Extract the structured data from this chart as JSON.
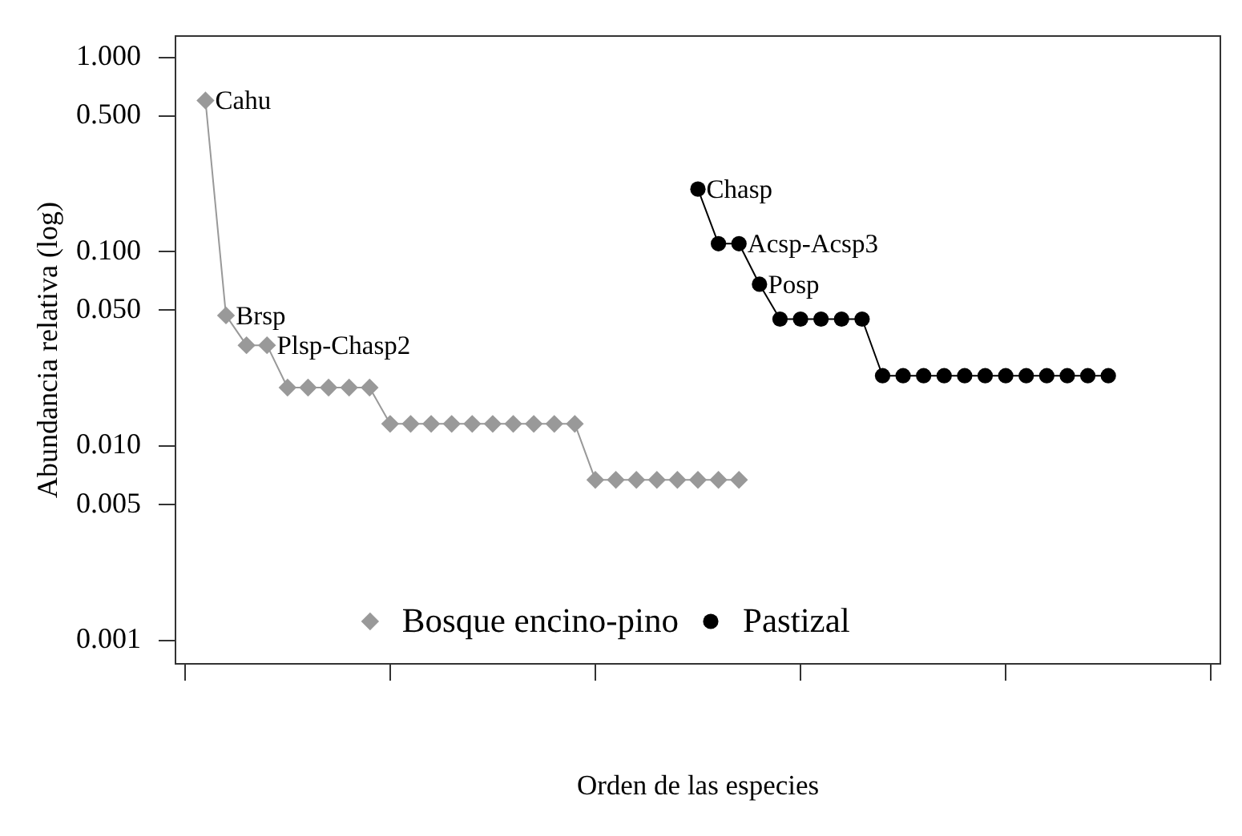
{
  "chart_data": {
    "type": "line",
    "xlabel": "Orden de las especies",
    "ylabel": "Abundancia relativa (log)",
    "log": "y",
    "grid": false,
    "legend": "bottom",
    "tick_labels": "y",
    "line_style": "solid",
    "categories": [
      null,
      null,
      null,
      null,
      null,
      null,
      null,
      null,
      null,
      null,
      null,
      null,
      null,
      null,
      null,
      null,
      null,
      null,
      null,
      null,
      null,
      null,
      null,
      null,
      null,
      null,
      null,
      null,
      null,
      null,
      null,
      null,
      null,
      null,
      null,
      null,
      null,
      null,
      null,
      null,
      null,
      null,
      null,
      null,
      null,
      null,
      null,
      null,
      null,
      null,
      null
    ],
    "ylim": [
      0.00075,
      1.3
    ],
    "yticks": [
      {
        "value": 0.001,
        "label": "0.001"
      },
      {
        "value": 0.005,
        "label": "0.005"
      },
      {
        "value": 0.01,
        "label": "0.010"
      },
      {
        "value": 0.05,
        "label": "0.050"
      },
      {
        "value": 0.1,
        "label": "0.100"
      },
      {
        "value": 0.5,
        "label": "0.500"
      },
      {
        "value": 1,
        "label": "1.000"
      }
    ],
    "series": [
      {
        "name": "Bosque encino-pino",
        "color": "#999999",
        "marker": "diamond",
        "values": [
          null,
          0.6,
          0.047,
          0.033,
          0.033,
          0.02,
          0.02,
          0.02,
          0.02,
          0.02,
          0.013,
          0.013,
          0.013,
          0.013,
          0.013,
          0.013,
          0.013,
          0.013,
          0.013,
          0.013,
          0.0067,
          0.0067,
          0.0067,
          0.0067,
          0.0067,
          0.0067,
          0.0067,
          0.0067,
          null,
          null,
          null,
          null,
          null,
          null,
          null,
          null,
          null,
          null,
          null,
          null,
          null,
          null,
          null,
          null,
          null,
          null,
          null,
          null,
          null,
          null,
          null
        ],
        "value_labels": [
          null,
          "Cahu",
          "Brsp",
          null,
          "Plsp-Chasp2",
          null,
          null,
          null,
          null,
          null,
          null,
          null,
          null,
          null,
          null,
          null,
          null,
          null,
          null,
          null,
          null,
          null,
          null,
          null,
          null,
          null,
          null,
          null,
          null,
          null,
          null,
          null,
          null,
          null,
          null,
          null,
          null,
          null,
          null,
          null,
          null,
          null,
          null,
          null,
          null,
          null,
          null,
          null,
          null,
          null,
          null
        ]
      },
      {
        "name": "Pastizal",
        "color": "#000000",
        "marker": "circle",
        "values": [
          null,
          null,
          null,
          null,
          null,
          null,
          null,
          null,
          null,
          null,
          null,
          null,
          null,
          null,
          null,
          null,
          null,
          null,
          null,
          null,
          null,
          null,
          null,
          null,
          null,
          0.21,
          0.11,
          0.11,
          0.068,
          0.045,
          0.045,
          0.045,
          0.045,
          0.045,
          0.023,
          0.023,
          0.023,
          0.023,
          0.023,
          0.023,
          0.023,
          0.023,
          0.023,
          0.023,
          0.023,
          0.023,
          null,
          null,
          null,
          null,
          null
        ],
        "value_labels": [
          null,
          null,
          null,
          null,
          null,
          null,
          null,
          null,
          null,
          null,
          null,
          null,
          null,
          null,
          null,
          null,
          null,
          null,
          null,
          null,
          null,
          null,
          null,
          null,
          null,
          "Chasp",
          null,
          "Acsp-Acsp3",
          "Posp",
          null,
          null,
          null,
          null,
          null,
          null,
          null,
          null,
          null,
          null,
          null,
          null,
          null,
          null,
          null,
          null,
          null,
          null,
          null,
          null,
          null,
          null
        ]
      }
    ]
  }
}
